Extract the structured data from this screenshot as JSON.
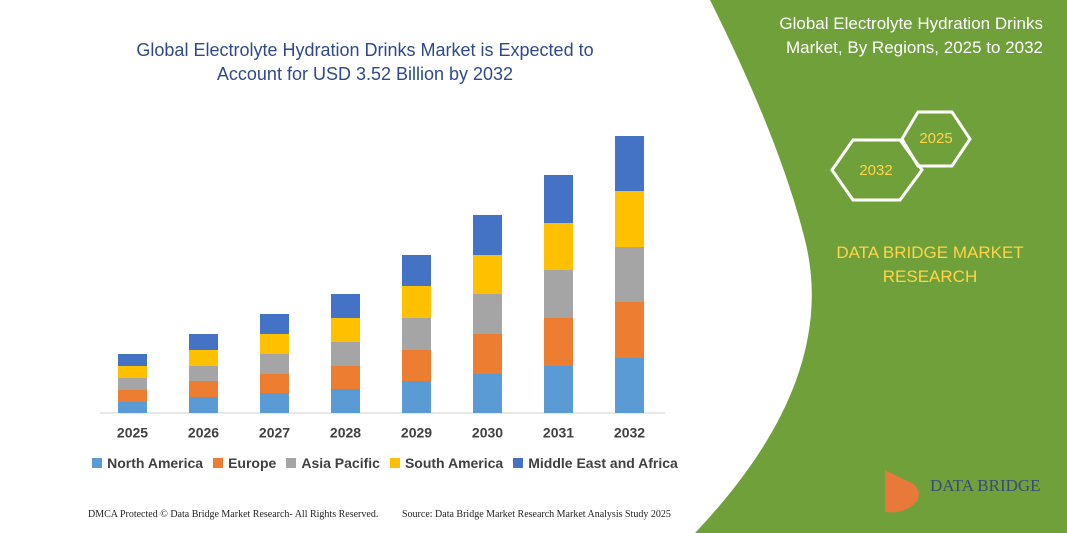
{
  "chart_data": {
    "type": "bar",
    "stacked": true,
    "title": "Global Electrolyte Hydration Drinks Market is Expected to Account for USD 3.52 Billion by 2032",
    "categories": [
      "2025",
      "2026",
      "2027",
      "2028",
      "2029",
      "2030",
      "2031",
      "2032"
    ],
    "series": [
      {
        "name": "North America",
        "color": "#5b9bd5",
        "values": [
          11,
          16,
          20,
          24,
          32,
          39,
          47,
          55
        ]
      },
      {
        "name": "Europe",
        "color": "#ed7d31",
        "values": [
          12,
          16,
          19,
          23,
          31,
          40,
          48,
          56
        ]
      },
      {
        "name": "Asia Pacific",
        "color": "#a5a5a5",
        "values": [
          12,
          15,
          20,
          24,
          32,
          40,
          48,
          55
        ]
      },
      {
        "name": "South America",
        "color": "#ffc000",
        "values": [
          12,
          16,
          20,
          24,
          32,
          39,
          47,
          56
        ]
      },
      {
        "name": "Middle East and Africa",
        "color": "#4472c4",
        "values": [
          12,
          16,
          20,
          24,
          31,
          40,
          48,
          55
        ]
      }
    ]
  },
  "panel_title": "Global Electrolyte Hydration Drinks Market, By Regions, 2025 to 2032",
  "hexagons": [
    "2032",
    "2025"
  ],
  "brand": "DATA BRIDGE MARKET RESEARCH",
  "logo": "DATA BRIDGE",
  "footer": {
    "left": "DMCA Protected © Data Bridge Market Research-  All Rights Reserved.",
    "right": "Source: Data Bridge Market Research  Market Analysis Study 2025"
  }
}
